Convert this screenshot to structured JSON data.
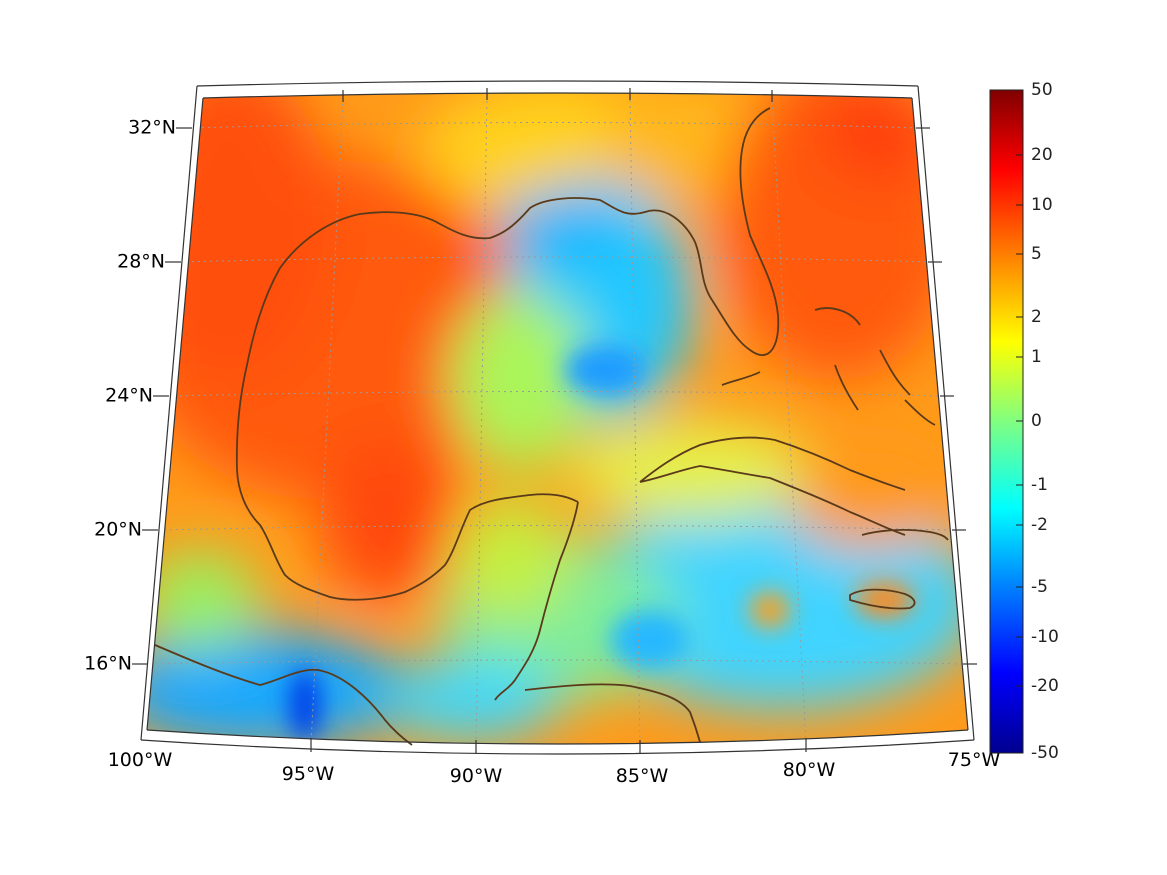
{
  "map": {
    "lat_labels": [
      "32°N",
      "28°N",
      "24°N",
      "20°N",
      "16°N"
    ],
    "lon_labels": [
      "100°W",
      "95°W",
      "90°W",
      "85°W",
      "80°W",
      "75°W"
    ]
  },
  "colorbar": {
    "tick_labels": [
      "50",
      "20",
      "10",
      "5",
      "2",
      "1",
      "0",
      "-1",
      "-2",
      "-5",
      "-10",
      "-20",
      "-50"
    ],
    "colormap": [
      "#00008f",
      "#0000ff",
      "#0080ff",
      "#00ffff",
      "#80ff80",
      "#ffff00",
      "#ff8000",
      "#ff0000",
      "#800000"
    ]
  },
  "colors": {
    "coastline": "#5a3a1a",
    "graticule": "#9a9a9a",
    "frame": "#333333"
  }
}
